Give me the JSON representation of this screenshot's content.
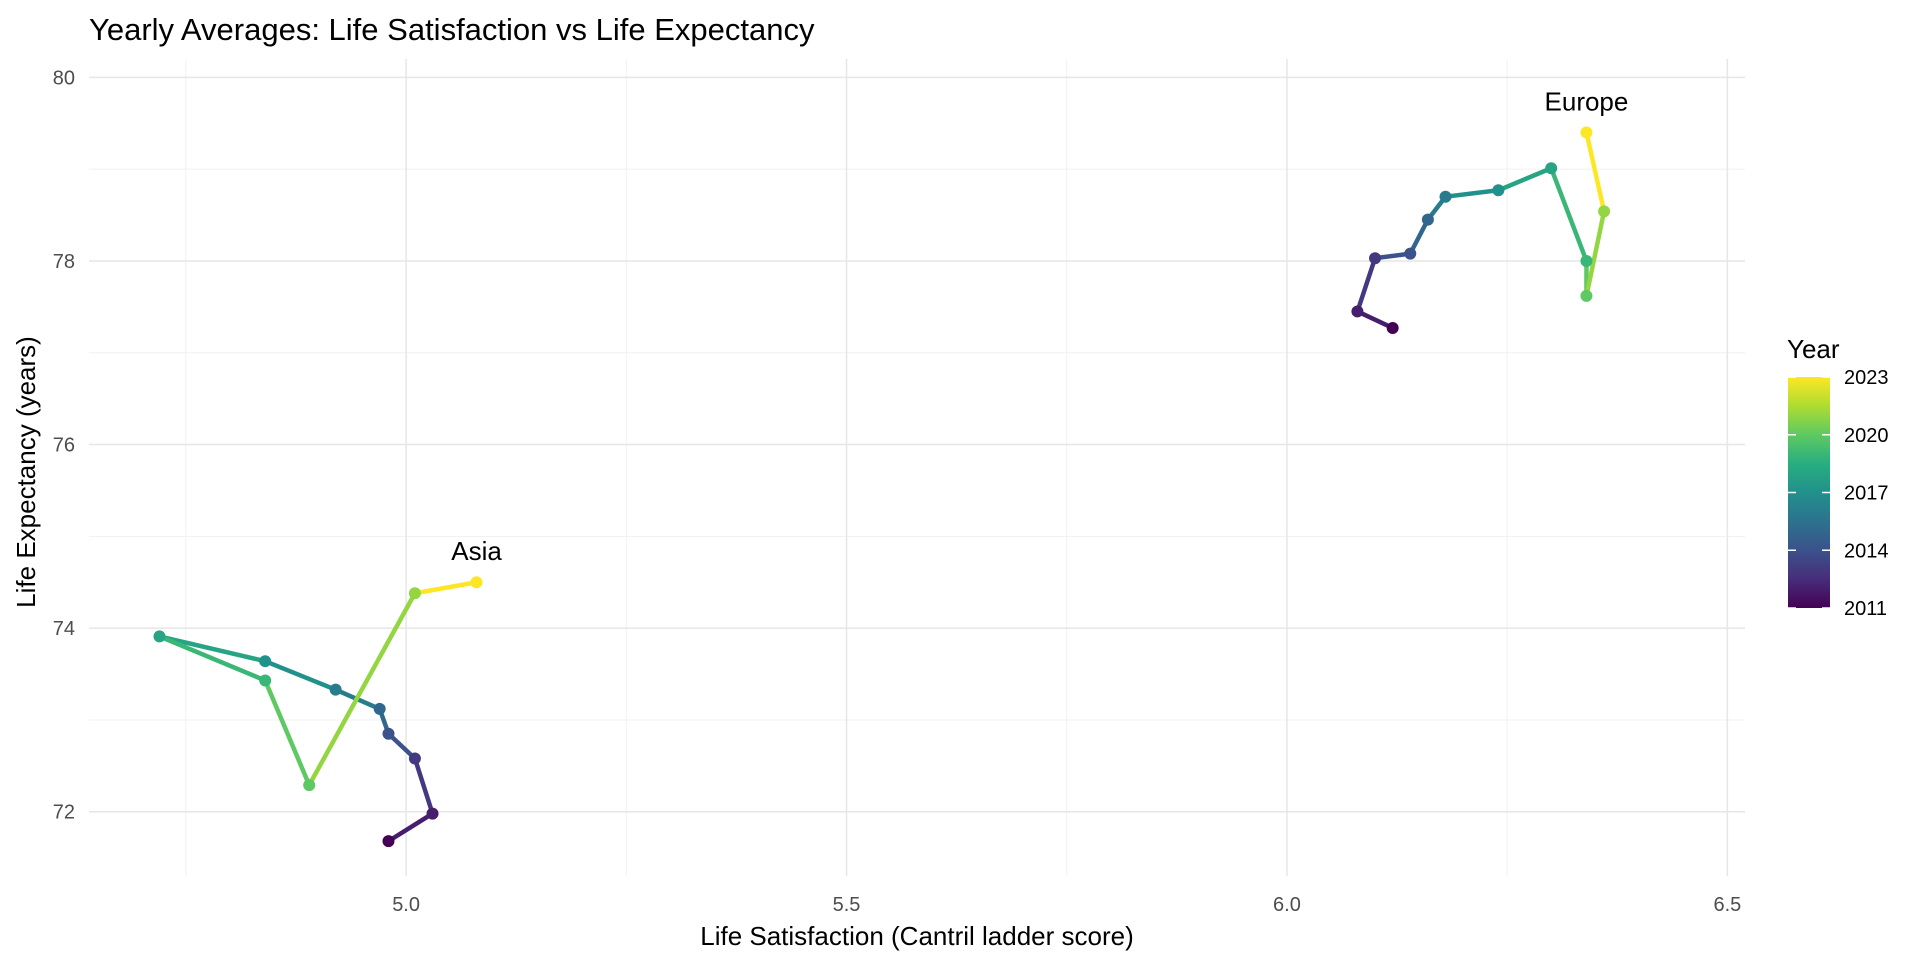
{
  "chart_data": {
    "type": "line",
    "title": "Yearly Averages: Life Satisfaction vs Life Expectancy",
    "xlabel": "Life Satisfaction (Cantril ladder score)",
    "ylabel": "Life Expectancy (years)",
    "xlim": [
      4.64,
      6.52
    ],
    "ylim": [
      71.3,
      80.2
    ],
    "x_ticks": [
      5.0,
      5.5,
      6.0,
      6.5
    ],
    "x_tick_labels": [
      "5.0",
      "5.5",
      "6.0",
      "6.5"
    ],
    "y_ticks": [
      72,
      74,
      76,
      78,
      80
    ],
    "y_tick_labels": [
      "72",
      "74",
      "76",
      "78",
      "80"
    ],
    "grid": true,
    "color_scale": "viridis",
    "legend": {
      "title": "Year",
      "position": "right",
      "range": [
        2011,
        2023
      ],
      "ticks": [
        2011,
        2014,
        2017,
        2020,
        2023
      ],
      "tick_labels": [
        "2011",
        "2014",
        "2017",
        "2020",
        "2023"
      ]
    },
    "series": [
      {
        "label": "Asia",
        "points": [
          {
            "year": 2011,
            "x": 4.98,
            "y": 71.68
          },
          {
            "year": 2012,
            "x": 5.03,
            "y": 71.98
          },
          {
            "year": 2013,
            "x": 5.01,
            "y": 72.58
          },
          {
            "year": 2014,
            "x": 4.98,
            "y": 72.85
          },
          {
            "year": 2015,
            "x": 4.97,
            "y": 73.12
          },
          {
            "year": 2016,
            "x": 4.92,
            "y": 73.33
          },
          {
            "year": 2017,
            "x": 4.84,
            "y": 73.64
          },
          {
            "year": 2018,
            "x": 4.72,
            "y": 73.91
          },
          {
            "year": 2019,
            "x": 4.84,
            "y": 73.43
          },
          {
            "year": 2020,
            "x": 4.89,
            "y": 72.29
          },
          {
            "year": 2021,
            "x": 5.01,
            "y": 74.38
          },
          {
            "year": 2023,
            "x": 5.08,
            "y": 74.5
          }
        ]
      },
      {
        "label": "Europe",
        "points": [
          {
            "year": 2011,
            "x": 6.12,
            "y": 77.27
          },
          {
            "year": 2012,
            "x": 6.08,
            "y": 77.45
          },
          {
            "year": 2013,
            "x": 6.1,
            "y": 78.03
          },
          {
            "year": 2014,
            "x": 6.14,
            "y": 78.08
          },
          {
            "year": 2015,
            "x": 6.16,
            "y": 78.45
          },
          {
            "year": 2016,
            "x": 6.18,
            "y": 78.7
          },
          {
            "year": 2017,
            "x": 6.24,
            "y": 78.77
          },
          {
            "year": 2018,
            "x": 6.3,
            "y": 79.01
          },
          {
            "year": 2019,
            "x": 6.34,
            "y": 78.0
          },
          {
            "year": 2020,
            "x": 6.34,
            "y": 77.62
          },
          {
            "year": 2021,
            "x": 6.36,
            "y": 78.54
          },
          {
            "year": 2023,
            "x": 6.34,
            "y": 79.4
          }
        ]
      }
    ]
  }
}
